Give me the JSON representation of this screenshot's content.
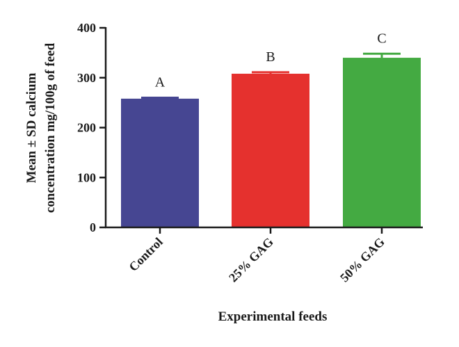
{
  "chart_data": {
    "type": "bar",
    "xlabel": "Experimental feeds",
    "ylabel_lines": [
      "Mean ± SD calcium",
      "concentration mg/100g of feed"
    ],
    "categories": [
      "Control",
      "25% GAG",
      "50% GAG"
    ],
    "values": [
      258,
      308,
      340
    ],
    "errors": [
      2,
      3,
      8
    ],
    "significance_letters": [
      "A",
      "B",
      "C"
    ],
    "colors": [
      "#464692",
      "#e5312e",
      "#44aa42"
    ],
    "ylim": [
      0,
      400
    ],
    "yticks": [
      0,
      100,
      200,
      300,
      400
    ],
    "grid": false,
    "legend": "none"
  }
}
